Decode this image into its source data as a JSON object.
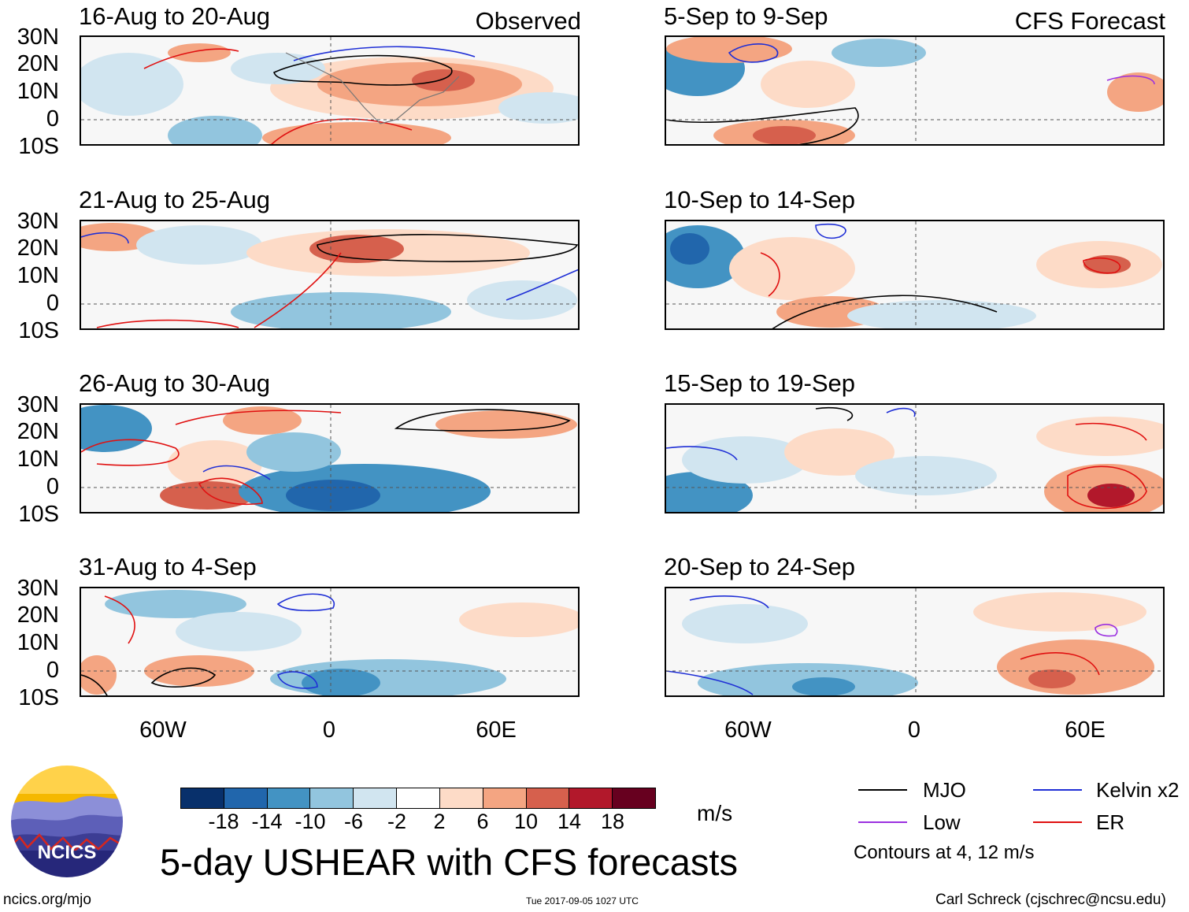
{
  "panels_left": [
    {
      "title": "16-Aug to 20-Aug",
      "tag": "Observed"
    },
    {
      "title": "21-Aug to 25-Aug",
      "tag": ""
    },
    {
      "title": "26-Aug to 30-Aug",
      "tag": ""
    },
    {
      "title": "31-Aug to 4-Sep",
      "tag": ""
    }
  ],
  "panels_right": [
    {
      "title": "5-Sep to 9-Sep",
      "tag": "CFS Forecast"
    },
    {
      "title": "10-Sep to 14-Sep",
      "tag": ""
    },
    {
      "title": "15-Sep to 19-Sep",
      "tag": ""
    },
    {
      "title": "20-Sep to 24-Sep",
      "tag": ""
    }
  ],
  "lat_labels": [
    "30N",
    "20N",
    "10N",
    "0",
    "10S"
  ],
  "lon_labels": [
    "60W",
    "0",
    "60E"
  ],
  "colorbar": {
    "ticks": [
      "-18",
      "-14",
      "-10",
      "-6",
      "-2",
      "2",
      "6",
      "10",
      "14",
      "18"
    ],
    "colors": [
      "#08306b",
      "#2166ac",
      "#4393c3",
      "#92c5de",
      "#d1e5f0",
      "#ffffff",
      "#fddbc7",
      "#f4a582",
      "#d6604d",
      "#b2182b",
      "#67001f"
    ],
    "units": "m/s"
  },
  "legend": {
    "mjo": {
      "label": "MJO",
      "color": "#000000"
    },
    "kelvin": {
      "label": "Kelvin x2",
      "color": "#1f2fd6"
    },
    "low": {
      "label": "Low",
      "color": "#9b30e0"
    },
    "er": {
      "label": "ER",
      "color": "#e01010"
    },
    "note": "Contours at 4, 12 m/s"
  },
  "main_title": "5-day USHEAR with CFS forecasts",
  "logo_text": "NCICS",
  "footer": {
    "left": "ncics.org/mjo",
    "center": "Tue 2017-09-05 1027 UTC",
    "right": "Carl Schreck (cjschrec@ncsu.edu)"
  }
}
